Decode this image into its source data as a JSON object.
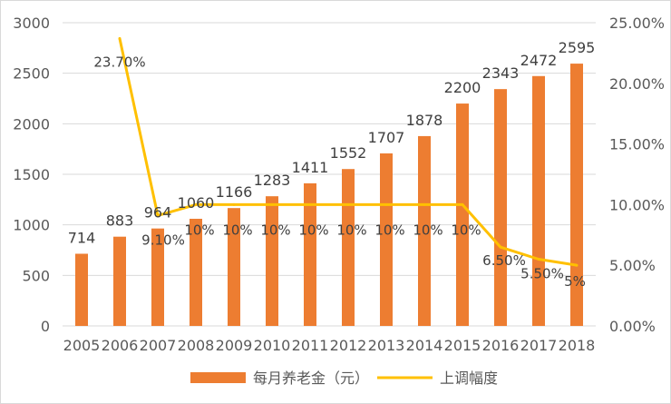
{
  "chart_data": {
    "type": "bar+line",
    "categories": [
      "2005",
      "2006",
      "2007",
      "2008",
      "2009",
      "2010",
      "2011",
      "2012",
      "2013",
      "2014",
      "2015",
      "2016",
      "2017",
      "2018"
    ],
    "series": [
      {
        "name": "每月养老金（元）",
        "type": "bar",
        "axis": "left",
        "color": "#ED7D31",
        "values": [
          714,
          883,
          964,
          1060,
          1166,
          1283,
          1411,
          1552,
          1707,
          1878,
          2200,
          2343,
          2472,
          2595
        ],
        "data_labels": [
          "714",
          "883",
          "964",
          "1060",
          "1166",
          "1283",
          "1411",
          "1552",
          "1707",
          "1878",
          "2200",
          "2343",
          "2472",
          "2595"
        ]
      },
      {
        "name": "上调幅度",
        "type": "line",
        "axis": "right",
        "color": "#FFC000",
        "values": [
          null,
          23.7,
          9.1,
          10,
          10,
          10,
          10,
          10,
          10,
          10,
          10,
          6.5,
          5.5,
          5
        ],
        "data_labels": [
          "",
          "23.70%",
          "9.10%",
          "10%",
          "10%",
          "10%",
          "10%",
          "10%",
          "10%",
          "10%",
          "10%",
          "6.50%",
          "5.50%",
          "5%"
        ]
      }
    ],
    "y_left": {
      "ylim": [
        0,
        3000
      ],
      "ticks": [
        0,
        500,
        1000,
        1500,
        2000,
        2500,
        3000
      ],
      "tick_labels": [
        "0",
        "500",
        "1000",
        "1500",
        "2000",
        "2500",
        "3000"
      ]
    },
    "y_right": {
      "ylim": [
        0,
        25
      ],
      "ticks": [
        0,
        5,
        10,
        15,
        20,
        25
      ],
      "tick_labels": [
        "0.00%",
        "5.00%",
        "10.00%",
        "15.00%",
        "20.00%",
        "25.00%"
      ]
    },
    "grid": true,
    "legend": {
      "position": "bottom",
      "items": [
        {
          "label": "每月养老金（元）",
          "symbol": "bar",
          "color": "#ED7D31"
        },
        {
          "label": "上调幅度",
          "symbol": "line",
          "color": "#FFC000"
        }
      ]
    }
  }
}
